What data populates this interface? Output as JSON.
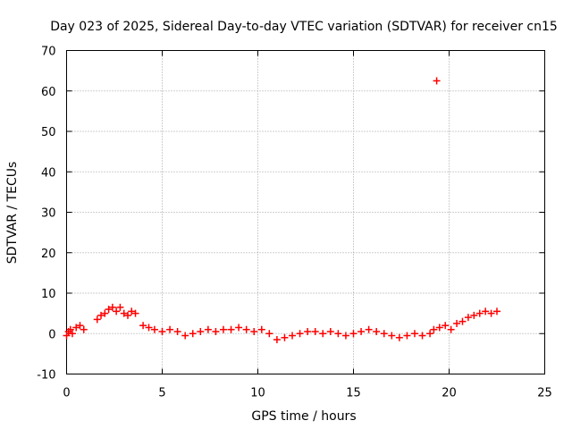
{
  "chart_data": {
    "type": "scatter",
    "title": "Day 023 of 2025, Sidereal Day-to-day VTEC variation (SDTVAR) for receiver cn15",
    "xlabel": "GPS time / hours",
    "ylabel": "SDTVAR / TECUs",
    "xlim": [
      0,
      25
    ],
    "ylim": [
      -10,
      70
    ],
    "xticks": [
      0,
      5,
      10,
      15,
      20,
      25
    ],
    "yticks": [
      -10,
      0,
      10,
      20,
      30,
      40,
      50,
      60,
      70
    ],
    "grid": true,
    "marker": "plus",
    "color": "#ff0000",
    "series": [
      {
        "name": "SDTVAR",
        "x": [
          0.0,
          0.1,
          0.2,
          0.3,
          0.5,
          0.7,
          0.9,
          1.6,
          1.8,
          2.0,
          2.2,
          2.4,
          2.6,
          2.8,
          3.0,
          3.2,
          3.4,
          3.6,
          4.0,
          4.3,
          4.6,
          5.0,
          5.4,
          5.8,
          6.2,
          6.6,
          7.0,
          7.4,
          7.8,
          8.2,
          8.6,
          9.0,
          9.4,
          9.8,
          10.2,
          10.6,
          11.0,
          11.4,
          11.8,
          12.2,
          12.6,
          13.0,
          13.4,
          13.8,
          14.2,
          14.6,
          15.0,
          15.4,
          15.8,
          16.2,
          16.6,
          17.0,
          17.4,
          17.8,
          18.2,
          18.6,
          19.0,
          19.2,
          19.35,
          19.5,
          19.8,
          20.1,
          20.4,
          20.7,
          21.0,
          21.3,
          21.6,
          21.9,
          22.2,
          22.5
        ],
        "y": [
          -0.5,
          0.5,
          1.0,
          0.0,
          1.5,
          2.0,
          1.0,
          3.5,
          4.5,
          5.0,
          6.0,
          6.5,
          5.5,
          6.5,
          5.0,
          4.5,
          5.5,
          5.0,
          2.0,
          1.5,
          1.0,
          0.5,
          1.0,
          0.5,
          -0.5,
          0.0,
          0.5,
          1.0,
          0.5,
          1.0,
          1.0,
          1.5,
          1.0,
          0.5,
          1.0,
          0.0,
          -1.5,
          -1.0,
          -0.5,
          0.0,
          0.5,
          0.5,
          0.0,
          0.5,
          0.0,
          -0.5,
          0.0,
          0.5,
          1.0,
          0.5,
          0.0,
          -0.5,
          -1.0,
          -0.5,
          0.0,
          -0.5,
          0.0,
          1.0,
          62.5,
          1.5,
          2.0,
          1.0,
          2.5,
          3.0,
          4.0,
          4.5,
          5.0,
          5.5,
          5.0,
          5.5
        ]
      }
    ]
  }
}
